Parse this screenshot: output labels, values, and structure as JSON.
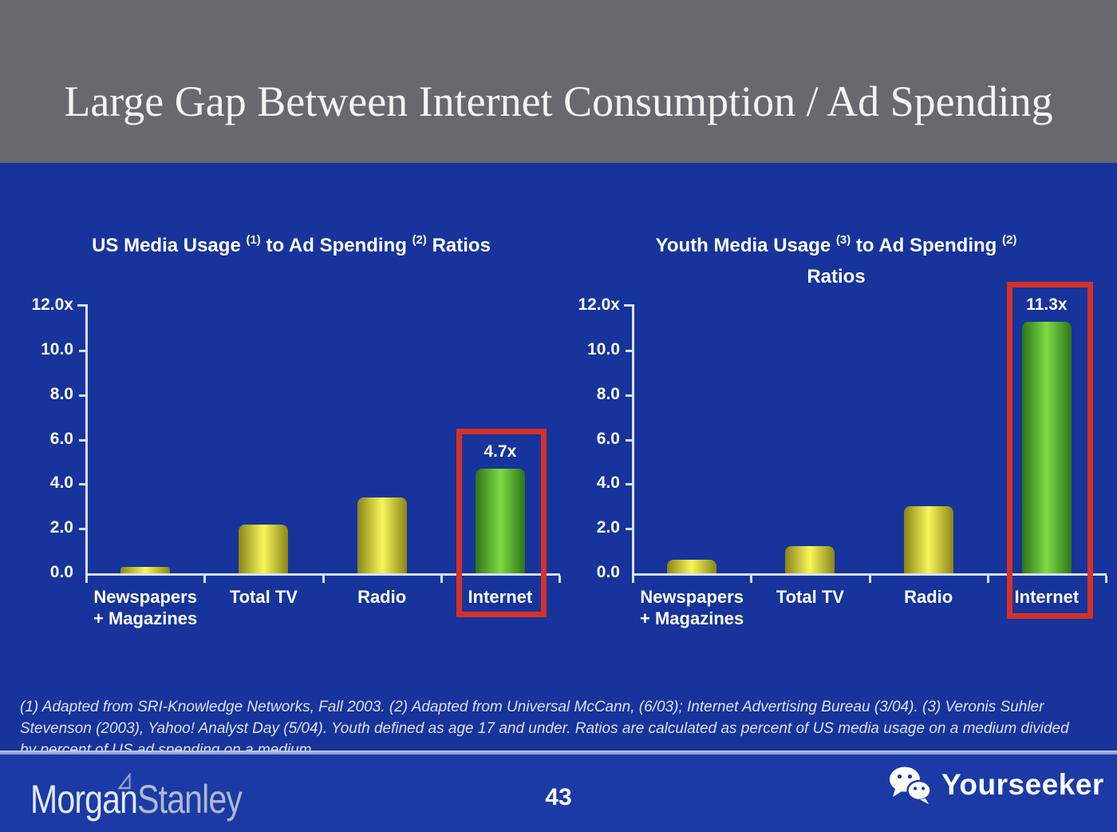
{
  "slide": {
    "title": "Large Gap Between Internet Consumption / Ad Spending",
    "page_number": "43"
  },
  "footnote": {
    "lines": [
      "(1) Adapted from SRI-Knowledge Networks, Fall 2003.  (2) Adapted from Universal McCann, (6/03); Internet Advertising Bureau (3/04). (3) Veronis Suhler",
      "Stevenson (2003), Yahoo! Analyst Day (5/04).  Youth defined as age 17 and under.  Ratios are calculated as percent of US media usage on a medium divided",
      "by percent of US ad spending on a medium."
    ]
  },
  "footer": {
    "brand_left_part1": "Morgan",
    "brand_left_part2": "Stanley",
    "brand_right": "Yourseeker"
  },
  "colors": {
    "background_blue": "#16349B",
    "footer_blue": "#1C3AA6",
    "header_gray": "#66696E",
    "axis_white": "#D8E0F2",
    "text_white": "#FFFFFF",
    "footnote_text": "#DCE1F2",
    "bar_yellow_edge": "#8A8518",
    "bar_yellow_mid": "#F8F65A",
    "bar_green_edge": "#2C7518",
    "bar_green_mid": "#7FDB44",
    "highlight_red": "#D63128",
    "logo_light": "#E3EAF5",
    "logo_dark": "#AEBACE"
  },
  "chart_data": [
    {
      "type": "bar",
      "title": "US Media Usage (1) to Ad Spending (2) Ratios",
      "title_lines": [
        [
          {
            "t": "US Media Usage "
          },
          {
            "s": "(1)"
          },
          {
            "t": " to Ad Spending "
          },
          {
            "s": "(2)"
          },
          {
            "t": " Ratios"
          }
        ]
      ],
      "categories": [
        [
          "Newspapers",
          "+ Magazines"
        ],
        [
          "Total TV"
        ],
        [
          "Radio"
        ],
        [
          "Internet"
        ]
      ],
      "values": [
        0.3,
        2.2,
        3.4,
        4.7
      ],
      "bar_styles": [
        "yellow",
        "yellow",
        "yellow",
        "green"
      ],
      "data_labels": [
        null,
        null,
        null,
        "4.7x"
      ],
      "highlight_index": 3,
      "ylim": [
        0,
        12
      ],
      "ytick_values": [
        12,
        10,
        8,
        6,
        4,
        2,
        0
      ],
      "ytick_labels": [
        "12.0x",
        "10.0",
        "8.0",
        "6.0",
        "4.0",
        "2.0",
        "0.0"
      ],
      "xlabel": "",
      "ylabel": "",
      "grid": false,
      "legend": null
    },
    {
      "type": "bar",
      "title": "Youth Media Usage (3) to Ad Spending (2) Ratios",
      "title_lines": [
        [
          {
            "t": "Youth Media Usage "
          },
          {
            "s": "(3)"
          },
          {
            "t": " to Ad Spending "
          },
          {
            "s": "(2)"
          }
        ],
        [
          {
            "t": "Ratios"
          }
        ]
      ],
      "categories": [
        [
          "Newspapers",
          "+ Magazines"
        ],
        [
          "Total TV"
        ],
        [
          "Radio"
        ],
        [
          "Internet"
        ]
      ],
      "values": [
        0.6,
        1.2,
        3.0,
        11.3
      ],
      "bar_styles": [
        "yellow",
        "yellow",
        "yellow",
        "green"
      ],
      "data_labels": [
        null,
        null,
        null,
        "11.3x"
      ],
      "highlight_index": 3,
      "ylim": [
        0,
        12
      ],
      "ytick_values": [
        12,
        10,
        8,
        6,
        4,
        2,
        0
      ],
      "ytick_labels": [
        "12.0x",
        "10.0",
        "8.0",
        "6.0",
        "4.0",
        "2.0",
        "0.0"
      ],
      "xlabel": "",
      "ylabel": "",
      "grid": false,
      "legend": null
    }
  ]
}
